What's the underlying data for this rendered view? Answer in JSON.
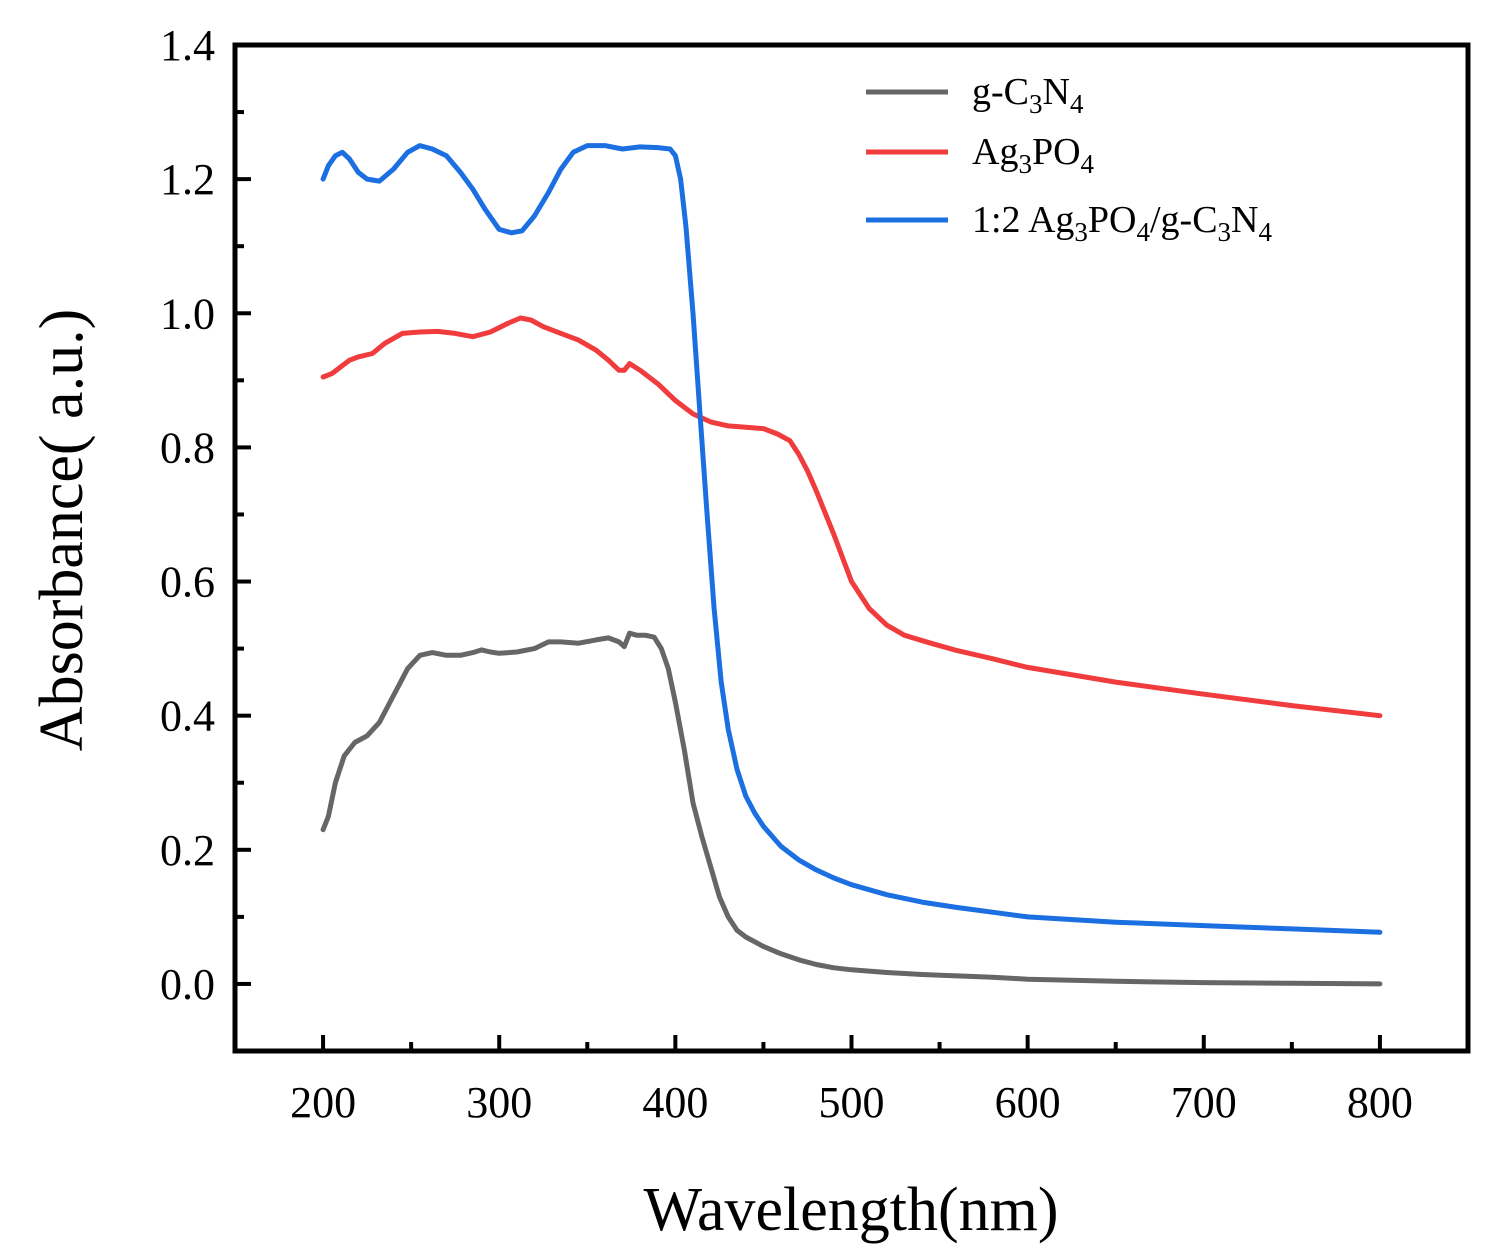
{
  "chart_data": {
    "type": "line",
    "xlabel": "Wavelength(nm)",
    "ylabel": "Absorbance( a.u.)",
    "xlim": [
      150,
      850
    ],
    "ylim": [
      -0.1,
      1.4
    ],
    "xticks": [
      200,
      300,
      400,
      500,
      600,
      700,
      800
    ],
    "xtick_labels": [
      "200",
      "300",
      "400",
      "500",
      "600",
      "700",
      "800"
    ],
    "yticks": [
      0.0,
      0.2,
      0.4,
      0.6,
      0.8,
      1.0,
      1.2,
      1.4
    ],
    "ytick_labels": [
      "0.0",
      "0.2",
      "0.4",
      "0.6",
      "0.8",
      "1.0",
      "1.2",
      "1.4"
    ],
    "grid": false,
    "legend_position": "top-right",
    "series": [
      {
        "name": "g-C3N4",
        "legend": {
          "base": "g-C",
          "sub1": "3",
          "mid": "N",
          "sub2": "4"
        },
        "color": "#666666",
        "x": [
          200,
          203,
          207,
          212,
          218,
          225,
          232,
          240,
          248,
          255,
          262,
          270,
          278,
          285,
          290,
          295,
          300,
          310,
          320,
          328,
          335,
          345,
          355,
          362,
          368,
          371,
          374,
          378,
          383,
          388,
          392,
          396,
          400,
          405,
          410,
          415,
          420,
          425,
          430,
          435,
          440,
          450,
          460,
          470,
          480,
          490,
          500,
          520,
          540,
          560,
          580,
          600,
          650,
          700,
          750,
          800
        ],
        "y": [
          0.23,
          0.25,
          0.3,
          0.34,
          0.36,
          0.37,
          0.39,
          0.43,
          0.47,
          0.49,
          0.494,
          0.49,
          0.49,
          0.494,
          0.498,
          0.495,
          0.493,
          0.495,
          0.5,
          0.51,
          0.51,
          0.508,
          0.513,
          0.516,
          0.51,
          0.503,
          0.523,
          0.52,
          0.52,
          0.517,
          0.5,
          0.47,
          0.42,
          0.35,
          0.27,
          0.22,
          0.175,
          0.13,
          0.1,
          0.08,
          0.07,
          0.056,
          0.045,
          0.036,
          0.029,
          0.024,
          0.021,
          0.017,
          0.014,
          0.012,
          0.01,
          0.007,
          0.004,
          0.002,
          0.001,
          0.0
        ]
      },
      {
        "name": "Ag3PO4",
        "legend": {
          "base": "Ag",
          "sub1": "3",
          "mid": "PO",
          "sub2": "4"
        },
        "color": "#f03c3c",
        "x": [
          200,
          205,
          210,
          215,
          220,
          228,
          235,
          245,
          255,
          265,
          275,
          285,
          295,
          305,
          312,
          318,
          325,
          335,
          345,
          355,
          362,
          368,
          371,
          374,
          380,
          390,
          400,
          410,
          420,
          430,
          440,
          450,
          458,
          465,
          470,
          475,
          480,
          490,
          500,
          510,
          520,
          530,
          545,
          560,
          580,
          600,
          650,
          700,
          750,
          800
        ],
        "y": [
          0.905,
          0.91,
          0.92,
          0.93,
          0.935,
          0.94,
          0.955,
          0.97,
          0.972,
          0.973,
          0.97,
          0.965,
          0.972,
          0.985,
          0.993,
          0.99,
          0.98,
          0.97,
          0.96,
          0.945,
          0.93,
          0.915,
          0.915,
          0.925,
          0.915,
          0.895,
          0.87,
          0.85,
          0.838,
          0.832,
          0.83,
          0.828,
          0.82,
          0.81,
          0.79,
          0.765,
          0.735,
          0.67,
          0.6,
          0.56,
          0.535,
          0.52,
          0.508,
          0.497,
          0.485,
          0.472,
          0.45,
          0.432,
          0.415,
          0.4
        ]
      },
      {
        "name": "1:2 Ag3PO4/g-C3N4",
        "legend": {
          "prefix": "1:2 Ag",
          "s1": "3",
          "m1": "PO",
          "s2": "4",
          "m2": "/g-C",
          "s3": "3",
          "m3": "N",
          "s4": "4"
        },
        "color": "#1c6fe0",
        "x": [
          200,
          203,
          207,
          211,
          215,
          220,
          225,
          232,
          240,
          248,
          255,
          262,
          270,
          278,
          285,
          292,
          300,
          307,
          313,
          320,
          328,
          335,
          342,
          350,
          360,
          370,
          380,
          390,
          397,
          400,
          403,
          406,
          410,
          414,
          418,
          422,
          426,
          430,
          435,
          440,
          445,
          450,
          460,
          470,
          480,
          490,
          500,
          520,
          540,
          560,
          580,
          600,
          650,
          700,
          750,
          800
        ],
        "y": [
          1.2,
          1.22,
          1.235,
          1.24,
          1.23,
          1.21,
          1.2,
          1.197,
          1.215,
          1.24,
          1.25,
          1.245,
          1.235,
          1.21,
          1.185,
          1.155,
          1.125,
          1.12,
          1.123,
          1.145,
          1.18,
          1.215,
          1.24,
          1.25,
          1.25,
          1.245,
          1.248,
          1.247,
          1.245,
          1.235,
          1.2,
          1.13,
          1.0,
          0.85,
          0.7,
          0.56,
          0.45,
          0.38,
          0.32,
          0.28,
          0.255,
          0.235,
          0.205,
          0.185,
          0.17,
          0.158,
          0.148,
          0.133,
          0.122,
          0.114,
          0.107,
          0.1,
          0.092,
          0.087,
          0.082,
          0.077
        ]
      }
    ]
  }
}
